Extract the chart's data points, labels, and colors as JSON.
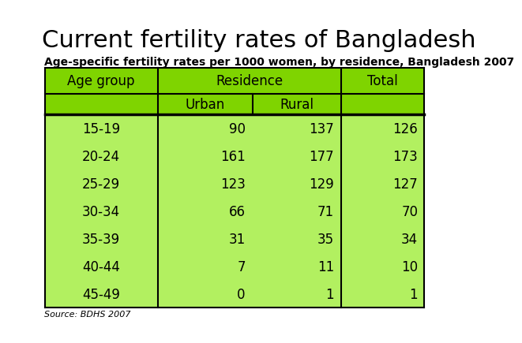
{
  "title": "Current fertility rates of Bangladesh",
  "subtitle": "Age-specific fertility rates per 1000 women, by residence, Bangladesh 2007",
  "source": "Source: BDHS 2007",
  "age_groups": [
    "15-19",
    "20-24",
    "25-29",
    "30-34",
    "35-39",
    "40-44",
    "45-49"
  ],
  "urban": [
    90,
    161,
    123,
    66,
    31,
    7,
    0
  ],
  "rural": [
    137,
    177,
    129,
    71,
    35,
    11,
    1
  ],
  "total": [
    126,
    173,
    127,
    70,
    34,
    10,
    1
  ],
  "bg_color": "#ffffff",
  "green_dark": "#7fd400",
  "green_light": "#b2f060",
  "title_color": "#000000",
  "text_color": "#000000",
  "line_color": "#000000",
  "title_fontsize": 22,
  "subtitle_fontsize": 10,
  "table_fontsize": 12,
  "source_fontsize": 8
}
